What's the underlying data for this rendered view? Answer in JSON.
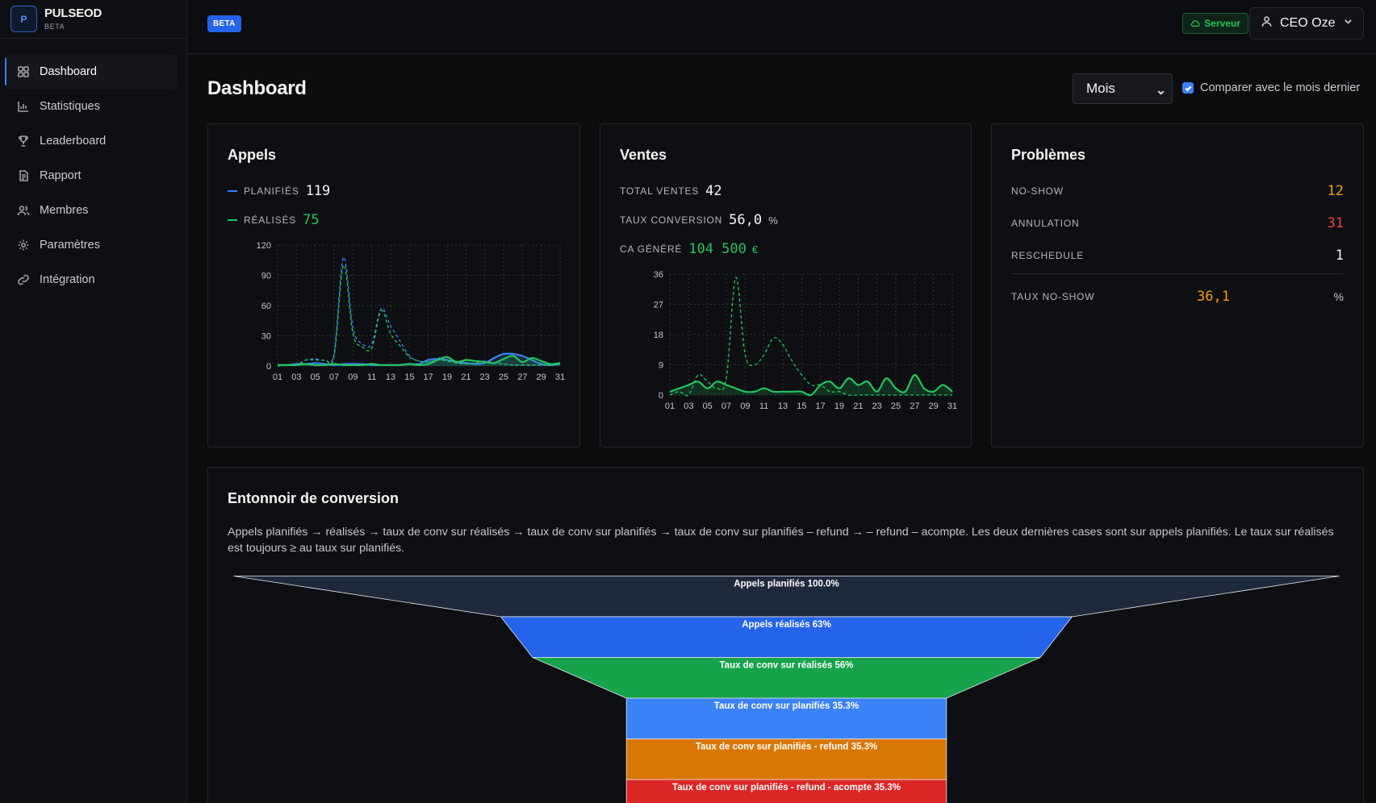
{
  "brand": {
    "logo_letter": "P",
    "name": "PULSEOD",
    "sub": "BETA"
  },
  "nav": [
    {
      "label": "Dashboard",
      "icon": "grid-icon",
      "active": true
    },
    {
      "label": "Statistiques",
      "icon": "bar-chart-icon"
    },
    {
      "label": "Leaderboard",
      "icon": "trophy-icon"
    },
    {
      "label": "Rapport",
      "icon": "document-icon"
    },
    {
      "label": "Membres",
      "icon": "users-icon"
    },
    {
      "label": "Paramètres",
      "icon": "gear-icon"
    },
    {
      "label": "Intégration",
      "icon": "link-icon"
    }
  ],
  "topbar": {
    "beta": "BETA",
    "server": "Serveur",
    "user": "CEO Oze"
  },
  "page": {
    "title": "Dashboard",
    "period": "Mois",
    "compare_label": "Comparer avec le mois dernier",
    "compare_checked": true
  },
  "appels": {
    "title": "Appels",
    "planifies_label": "PLANIFIÉS",
    "planifies_value": "119",
    "realises_label": "RÉALISÉS",
    "realises_value": "75"
  },
  "ventes": {
    "title": "Ventes",
    "total_label": "TOTAL VENTES",
    "total_value": "42",
    "taux_label": "TAUX CONVERSION",
    "taux_value": "56,0",
    "taux_unit": "%",
    "ca_label": "CA GÉNÉRÉ",
    "ca_value": "104 500",
    "ca_unit": "€"
  },
  "problemes": {
    "title": "Problèmes",
    "rows": [
      {
        "label": "NO-SHOW",
        "value": "12",
        "color": "#f59e0b"
      },
      {
        "label": "ANNULATION",
        "value": "31",
        "color": "#ef4444"
      },
      {
        "label": "RESCHEDULE",
        "value": "1",
        "color": "#f4f5f7"
      }
    ],
    "taux_label": "TAUX NO-SHOW",
    "taux_value": "36,1",
    "taux_unit": "%"
  },
  "funnel": {
    "title": "Entonnoir de conversion",
    "description": "Appels planifiés → réalisés → taux de conv sur réalisés → taux de conv sur planifiés → taux de conv sur planifiés – refund → – refund – acompte. Les deux dernières cases sont sur appels planifiés. Le taux sur réalisés est toujours ≥ au taux sur planifiés."
  },
  "colors": {
    "accent_blue": "#3b82f6",
    "green": "#22c55e",
    "orange": "#f59e0b",
    "red": "#ef4444"
  },
  "chart_data": [
    {
      "type": "line",
      "name": "appels",
      "x_ticks": [
        "01",
        "03",
        "05",
        "07",
        "09",
        "11",
        "13",
        "15",
        "17",
        "19",
        "21",
        "23",
        "25",
        "27",
        "29",
        "31"
      ],
      "y_ticks": [
        0,
        30,
        60,
        90,
        120
      ],
      "ylim": [
        0,
        120
      ],
      "grid": true,
      "series": [
        {
          "color": "#3b82f6",
          "style": "solid",
          "values": [
            1,
            1,
            2,
            2,
            3,
            2,
            1,
            2,
            2,
            2,
            1,
            1,
            1,
            1,
            2,
            2,
            6,
            7,
            6,
            4,
            3,
            2,
            3,
            8,
            12,
            12,
            10,
            6,
            2,
            1,
            2
          ]
        },
        {
          "color": "#3b82f6",
          "style": "dashed",
          "values": [
            0,
            1,
            1,
            6,
            7,
            6,
            13,
            108,
            38,
            22,
            22,
            57,
            40,
            25,
            10,
            5,
            4,
            8,
            6,
            3,
            2,
            3,
            5,
            3,
            2,
            1,
            1,
            1,
            1,
            1,
            2
          ]
        },
        {
          "color": "#22c55e",
          "style": "solid",
          "values": [
            1,
            1,
            1,
            2,
            1,
            1,
            2,
            1,
            1,
            1,
            2,
            1,
            1,
            1,
            2,
            1,
            2,
            6,
            9,
            4,
            6,
            5,
            4,
            3,
            7,
            10,
            4,
            8,
            5,
            2,
            3
          ]
        },
        {
          "color": "#22c55e",
          "style": "dashed",
          "values": [
            0,
            1,
            1,
            6,
            6,
            6,
            10,
            100,
            32,
            19,
            18,
            55,
            32,
            20,
            9,
            5,
            4,
            6,
            5,
            3,
            2,
            3,
            4,
            3,
            2,
            1,
            1,
            1,
            1,
            1,
            2
          ]
        }
      ]
    },
    {
      "type": "line",
      "name": "ventes",
      "x_ticks": [
        "01",
        "03",
        "05",
        "07",
        "09",
        "11",
        "13",
        "15",
        "17",
        "19",
        "21",
        "23",
        "25",
        "27",
        "29",
        "31"
      ],
      "y_ticks": [
        0,
        9,
        18,
        27,
        36
      ],
      "ylim": [
        0,
        36
      ],
      "grid": true,
      "series": [
        {
          "color": "#22c55e",
          "style": "solid",
          "values": [
            1,
            2,
            3,
            4,
            2,
            4,
            3,
            2,
            1,
            1,
            2,
            1,
            1,
            1,
            1,
            0,
            3,
            4,
            2,
            5,
            3,
            4,
            1,
            5,
            2,
            1,
            6,
            2,
            1,
            3,
            1
          ]
        },
        {
          "color": "#22c55e",
          "style": "dashed",
          "values": [
            0,
            1,
            0,
            6,
            4,
            2,
            5,
            35,
            12,
            9,
            12,
            17,
            15,
            10,
            6,
            3,
            3,
            1,
            1,
            0,
            0,
            0,
            0,
            0,
            0,
            0,
            0,
            0,
            0,
            0,
            0
          ]
        }
      ]
    },
    {
      "type": "funnel",
      "name": "entonnoir",
      "stages": [
        {
          "label": "Appels planifiés 100.0%",
          "value": 100.0,
          "color": "#1e293b"
        },
        {
          "label": "Appels réalisés 63%",
          "value": 63,
          "color": "#2563eb"
        },
        {
          "label": "Taux de conv sur réalisés 56%",
          "value": 56,
          "color": "#16a34a"
        },
        {
          "label": "Taux de conv sur planifiés 35.3%",
          "value": 35.3,
          "color": "#3b82f6"
        },
        {
          "label": "Taux de conv sur planifiés - refund 35.3%",
          "value": 35.3,
          "color": "#d97706"
        },
        {
          "label": "Taux de conv sur planifiés - refund - acompte 35.3%",
          "value": 35.3,
          "color": "#dc2626"
        }
      ]
    }
  ]
}
